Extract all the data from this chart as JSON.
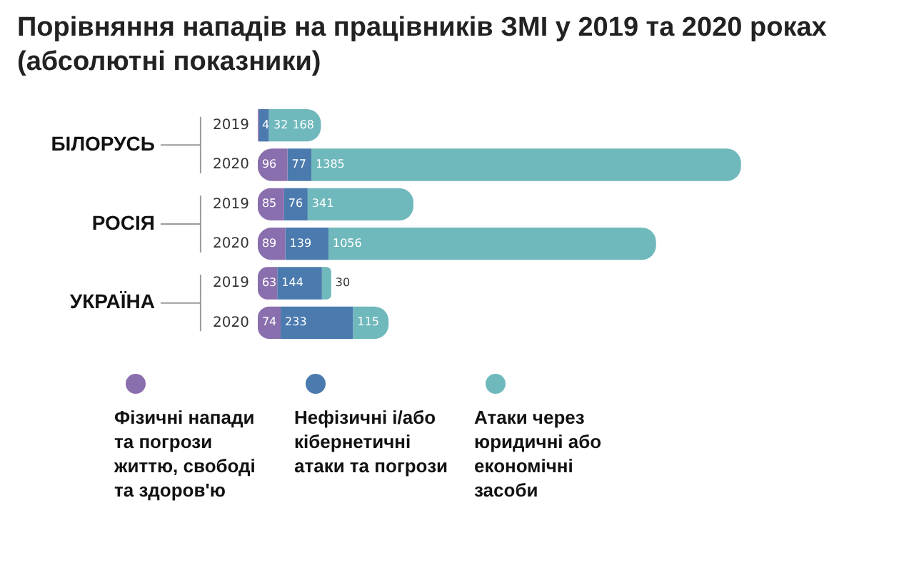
{
  "chart_data": {
    "type": "bar",
    "title": "Порівняння нападів на працівників ЗМІ у 2019 та 2020 роках (абсолютні показники)",
    "orientation": "horizontal",
    "stacked": true,
    "categories": [
      "2019",
      "2020",
      "2019",
      "2020",
      "2019",
      "2020"
    ],
    "series": [
      {
        "name": "Фізичні напади та погрози життю, свободі та здоров'ю",
        "color": "#8a6fae",
        "values": [
          4,
          96,
          85,
          89,
          63,
          74
        ]
      },
      {
        "name": "Нефізичні і/або кібернетичні атаки та погрози",
        "color": "#4a7aae",
        "values": [
          32,
          77,
          76,
          139,
          144,
          233
        ]
      },
      {
        "name": "Атаки через юридичні або економічні засоби",
        "color": "#6fb8bc",
        "values": [
          168,
          1385,
          341,
          1056,
          30,
          115
        ]
      }
    ],
    "annotations": [
      "БІЛОРУСЬ",
      "РОСІЯ",
      "УКРАЇНА"
    ],
    "data_labels": true,
    "grid": false,
    "legend": "bottom",
    "tick_labels": "y"
  }
}
